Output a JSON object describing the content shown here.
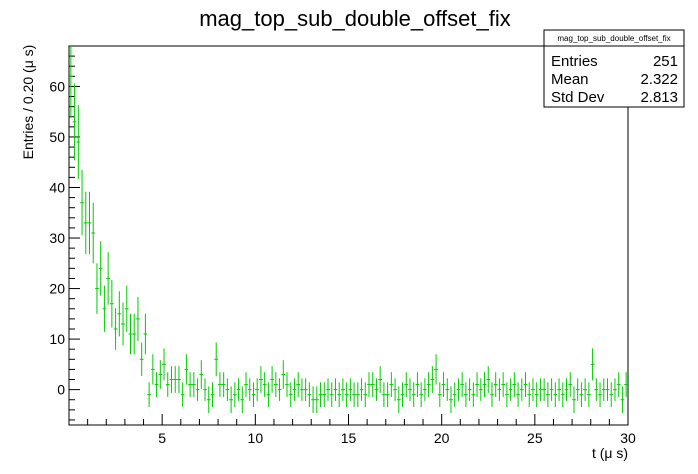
{
  "chart_data": {
    "type": "histogram",
    "title": "mag_top_sub_double_offset_fix",
    "xlabel": "t (μ s)",
    "ylabel": "Entries / 0.20 (μ s)",
    "xlim": [
      0,
      30
    ],
    "ylim": [
      -7,
      68
    ],
    "x_ticks": [
      5,
      10,
      15,
      20,
      25,
      30
    ],
    "y_ticks": [
      0,
      10,
      20,
      30,
      40,
      50,
      60
    ],
    "bin_width": 0.2,
    "marker_color": "#00cc00",
    "bins": [
      {
        "x": 0.1,
        "y": 62
      },
      {
        "x": 0.3,
        "y": 53
      },
      {
        "x": 0.5,
        "y": 49
      },
      {
        "x": 0.7,
        "y": 37
      },
      {
        "x": 0.9,
        "y": 33
      },
      {
        "x": 1.1,
        "y": 33
      },
      {
        "x": 1.3,
        "y": 31
      },
      {
        "x": 1.5,
        "y": 20
      },
      {
        "x": 1.7,
        "y": 24
      },
      {
        "x": 1.9,
        "y": 16
      },
      {
        "x": 2.1,
        "y": 22
      },
      {
        "x": 2.3,
        "y": 17
      },
      {
        "x": 2.5,
        "y": 12
      },
      {
        "x": 2.7,
        "y": 15
      },
      {
        "x": 2.9,
        "y": 13
      },
      {
        "x": 3.1,
        "y": 16
      },
      {
        "x": 3.3,
        "y": 11
      },
      {
        "x": 3.5,
        "y": 11
      },
      {
        "x": 3.7,
        "y": 14
      },
      {
        "x": 3.9,
        "y": 6
      },
      {
        "x": 4.1,
        "y": 11
      },
      {
        "x": 4.3,
        "y": -1
      },
      {
        "x": 4.5,
        "y": 4
      },
      {
        "x": 4.7,
        "y": 1
      },
      {
        "x": 4.9,
        "y": 3
      },
      {
        "x": 5.1,
        "y": 5
      },
      {
        "x": 5.3,
        "y": 1
      },
      {
        "x": 5.5,
        "y": 2
      },
      {
        "x": 5.7,
        "y": 2
      },
      {
        "x": 5.9,
        "y": 2
      },
      {
        "x": 6.1,
        "y": -1
      },
      {
        "x": 6.3,
        "y": 4
      },
      {
        "x": 6.5,
        "y": 1
      },
      {
        "x": 6.7,
        "y": 1
      },
      {
        "x": 6.9,
        "y": 0
      },
      {
        "x": 7.1,
        "y": 3
      },
      {
        "x": 7.3,
        "y": 0
      },
      {
        "x": 7.5,
        "y": -2
      },
      {
        "x": 7.7,
        "y": -1
      },
      {
        "x": 7.9,
        "y": 6
      },
      {
        "x": 8.1,
        "y": 1
      },
      {
        "x": 8.3,
        "y": 1
      },
      {
        "x": 8.5,
        "y": 0
      },
      {
        "x": 8.7,
        "y": -2
      },
      {
        "x": 8.9,
        "y": -1
      },
      {
        "x": 9.1,
        "y": 0
      },
      {
        "x": 9.3,
        "y": -2
      },
      {
        "x": 9.5,
        "y": 1
      },
      {
        "x": 9.7,
        "y": 0
      },
      {
        "x": 9.9,
        "y": -1
      },
      {
        "x": 10.1,
        "y": 0
      },
      {
        "x": 10.3,
        "y": 2
      },
      {
        "x": 10.5,
        "y": 1
      },
      {
        "x": 10.7,
        "y": -1
      },
      {
        "x": 10.9,
        "y": 2
      },
      {
        "x": 11.1,
        "y": 1
      },
      {
        "x": 11.3,
        "y": 0
      },
      {
        "x": 11.5,
        "y": 3
      },
      {
        "x": 11.7,
        "y": 1
      },
      {
        "x": 11.9,
        "y": -1
      },
      {
        "x": 12.1,
        "y": 0
      },
      {
        "x": 12.3,
        "y": 1
      },
      {
        "x": 12.5,
        "y": 0
      },
      {
        "x": 12.7,
        "y": 0
      },
      {
        "x": 12.9,
        "y": -1
      },
      {
        "x": 13.1,
        "y": -2
      },
      {
        "x": 13.3,
        "y": -2
      },
      {
        "x": 13.5,
        "y": -1
      },
      {
        "x": 13.7,
        "y": -1
      },
      {
        "x": 13.9,
        "y": 0
      },
      {
        "x": 14.1,
        "y": -1
      },
      {
        "x": 14.3,
        "y": 0
      },
      {
        "x": 14.5,
        "y": -1
      },
      {
        "x": 14.7,
        "y": 0
      },
      {
        "x": 14.9,
        "y": -1
      },
      {
        "x": 15.1,
        "y": 0
      },
      {
        "x": 15.3,
        "y": -1
      },
      {
        "x": 15.5,
        "y": -1
      },
      {
        "x": 15.7,
        "y": 0
      },
      {
        "x": 15.9,
        "y": -1
      },
      {
        "x": 16.1,
        "y": 1
      },
      {
        "x": 16.3,
        "y": 1
      },
      {
        "x": 16.5,
        "y": 0
      },
      {
        "x": 16.7,
        "y": 2
      },
      {
        "x": 16.9,
        "y": -1
      },
      {
        "x": 17.1,
        "y": -1
      },
      {
        "x": 17.3,
        "y": 1
      },
      {
        "x": 17.5,
        "y": 0
      },
      {
        "x": 17.7,
        "y": -2
      },
      {
        "x": 17.9,
        "y": -1
      },
      {
        "x": 18.1,
        "y": 1
      },
      {
        "x": 18.3,
        "y": 0
      },
      {
        "x": 18.5,
        "y": -1
      },
      {
        "x": 18.7,
        "y": 1
      },
      {
        "x": 18.9,
        "y": -1
      },
      {
        "x": 19.1,
        "y": 0
      },
      {
        "x": 19.3,
        "y": 1
      },
      {
        "x": 19.5,
        "y": 2
      },
      {
        "x": 19.7,
        "y": 4
      },
      {
        "x": 19.9,
        "y": -1
      },
      {
        "x": 20.1,
        "y": 1
      },
      {
        "x": 20.3,
        "y": 0
      },
      {
        "x": 20.5,
        "y": -2
      },
      {
        "x": 20.7,
        "y": -1
      },
      {
        "x": 20.9,
        "y": 0
      },
      {
        "x": 21.1,
        "y": 1
      },
      {
        "x": 21.3,
        "y": -1
      },
      {
        "x": 21.5,
        "y": 0
      },
      {
        "x": 21.7,
        "y": -1
      },
      {
        "x": 21.9,
        "y": 1
      },
      {
        "x": 22.1,
        "y": 0
      },
      {
        "x": 22.3,
        "y": 1
      },
      {
        "x": 22.5,
        "y": 2
      },
      {
        "x": 22.7,
        "y": -1
      },
      {
        "x": 22.9,
        "y": 1
      },
      {
        "x": 23.1,
        "y": 0
      },
      {
        "x": 23.3,
        "y": 1
      },
      {
        "x": 23.5,
        "y": -1
      },
      {
        "x": 23.7,
        "y": 0
      },
      {
        "x": 23.9,
        "y": 1
      },
      {
        "x": 24.1,
        "y": -1
      },
      {
        "x": 24.3,
        "y": 0
      },
      {
        "x": 24.5,
        "y": 1
      },
      {
        "x": 24.7,
        "y": -1
      },
      {
        "x": 24.9,
        "y": 0
      },
      {
        "x": 25.1,
        "y": -1
      },
      {
        "x": 25.3,
        "y": 0
      },
      {
        "x": 25.5,
        "y": 0
      },
      {
        "x": 25.7,
        "y": -1
      },
      {
        "x": 25.9,
        "y": 0
      },
      {
        "x": 26.1,
        "y": -1
      },
      {
        "x": 26.3,
        "y": 0
      },
      {
        "x": 26.5,
        "y": -1
      },
      {
        "x": 26.7,
        "y": 0
      },
      {
        "x": 26.9,
        "y": 1
      },
      {
        "x": 27.1,
        "y": -2
      },
      {
        "x": 27.3,
        "y": 0
      },
      {
        "x": 27.5,
        "y": -1
      },
      {
        "x": 27.7,
        "y": 0
      },
      {
        "x": 27.9,
        "y": -1
      },
      {
        "x": 28.1,
        "y": 5
      },
      {
        "x": 28.3,
        "y": 0
      },
      {
        "x": 28.5,
        "y": -1
      },
      {
        "x": 28.7,
        "y": 0
      },
      {
        "x": 28.9,
        "y": 0
      },
      {
        "x": 29.1,
        "y": -1
      },
      {
        "x": 29.3,
        "y": 0
      },
      {
        "x": 29.5,
        "y": 1
      },
      {
        "x": 29.7,
        "y": -2
      },
      {
        "x": 29.9,
        "y": 1
      }
    ]
  },
  "stats_box": {
    "title": "mag_top_sub_double_offset_fix",
    "entries_label": "Entries",
    "entries_value": "251",
    "mean_label": "Mean",
    "mean_value": "2.322",
    "stddev_label": "Std Dev",
    "stddev_value": "2.813"
  }
}
